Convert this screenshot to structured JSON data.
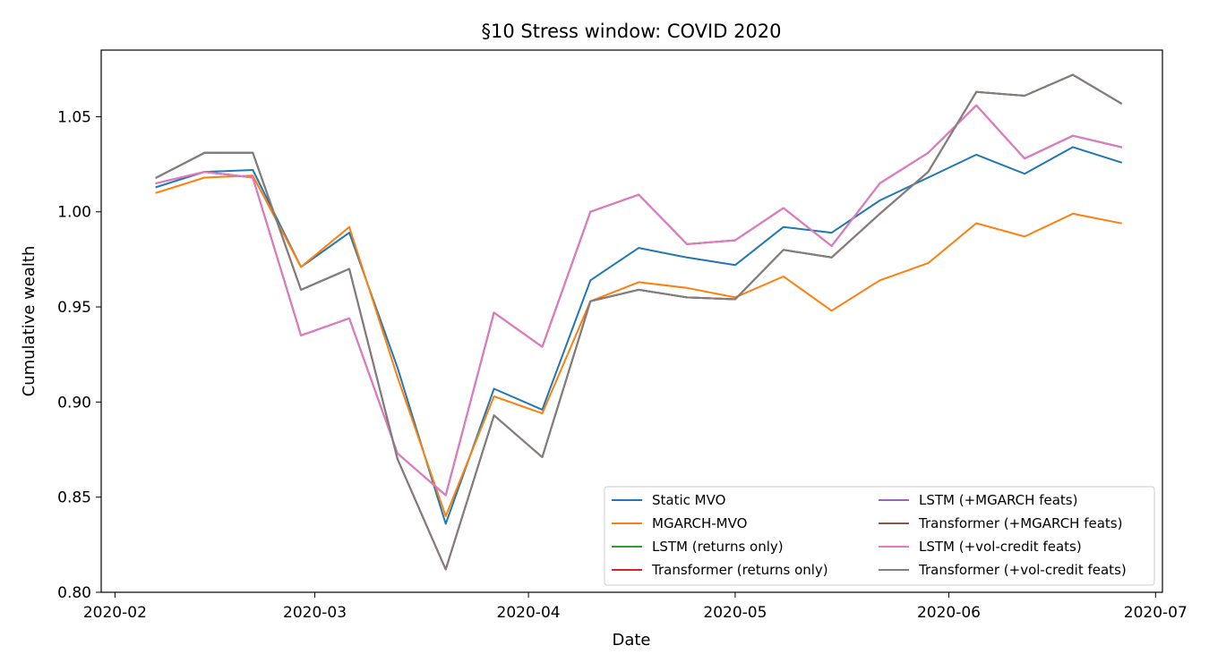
{
  "chart_data": {
    "type": "line",
    "title": "§10 Stress window: COVID 2020",
    "xlabel": "Date",
    "ylabel": "Cumulative wealth",
    "x_axis": "date",
    "xlim": [
      "2020-01-30",
      "2020-07-02"
    ],
    "ylim": [
      0.8,
      1.085
    ],
    "xticks": [
      "2020-02-01",
      "2020-03-01",
      "2020-04-01",
      "2020-05-01",
      "2020-06-01",
      "2020-07-01"
    ],
    "xtick_labels": [
      "2020-02",
      "2020-03",
      "2020-04",
      "2020-05",
      "2020-06",
      "2020-07"
    ],
    "yticks": [
      0.8,
      0.85,
      0.9,
      0.95,
      1.0,
      1.05
    ],
    "ytick_labels": [
      "0.80",
      "0.85",
      "0.90",
      "0.95",
      "1.00",
      "1.05"
    ],
    "grid": false,
    "legend_position": "lower-right",
    "legend_columns": 2,
    "x": [
      "2020-02-07",
      "2020-02-14",
      "2020-02-21",
      "2020-02-28",
      "2020-03-06",
      "2020-03-13",
      "2020-03-20",
      "2020-03-27",
      "2020-04-03",
      "2020-04-10",
      "2020-04-17",
      "2020-04-24",
      "2020-05-01",
      "2020-05-08",
      "2020-05-15",
      "2020-05-22",
      "2020-05-29",
      "2020-06-05",
      "2020-06-12",
      "2020-06-19",
      "2020-06-26"
    ],
    "series": [
      {
        "name": "Static MVO",
        "color": "#1f77b4",
        "values": [
          1.013,
          1.021,
          1.022,
          0.971,
          0.989,
          0.918,
          0.836,
          0.907,
          0.896,
          0.964,
          0.981,
          0.976,
          0.972,
          0.992,
          0.989,
          1.006,
          1.018,
          1.03,
          1.02,
          1.034,
          1.026
        ]
      },
      {
        "name": "MGARCH-MVO",
        "color": "#ff7f0e",
        "values": [
          1.01,
          1.018,
          1.019,
          0.971,
          0.992,
          0.913,
          0.84,
          0.903,
          0.894,
          0.953,
          0.963,
          0.96,
          0.955,
          0.966,
          0.948,
          0.964,
          0.973,
          0.994,
          0.987,
          0.999,
          0.994
        ]
      },
      {
        "name": "LSTM (returns only)",
        "color": "#2ca02c",
        "values": [
          1.015,
          1.021,
          1.018,
          0.935,
          0.944,
          0.873,
          0.851,
          0.947,
          0.929,
          1.0,
          1.009,
          0.983,
          0.985,
          1.002,
          0.982,
          1.015,
          1.031,
          1.056,
          1.028,
          1.04,
          1.034
        ]
      },
      {
        "name": "Transformer (returns only)",
        "color": "#d62728",
        "values": [
          1.018,
          1.031,
          1.031,
          0.959,
          0.97,
          0.87,
          0.812,
          0.893,
          0.871,
          0.953,
          0.959,
          0.955,
          0.954,
          0.98,
          0.976,
          0.999,
          1.021,
          1.063,
          1.061,
          1.072,
          1.057
        ]
      },
      {
        "name": "LSTM (+MGARCH feats)",
        "color": "#9467bd",
        "values": [
          1.015,
          1.021,
          1.018,
          0.935,
          0.944,
          0.873,
          0.851,
          0.947,
          0.929,
          1.0,
          1.009,
          0.983,
          0.985,
          1.002,
          0.982,
          1.015,
          1.031,
          1.056,
          1.028,
          1.04,
          1.034
        ]
      },
      {
        "name": "Transformer (+MGARCH feats)",
        "color": "#8c564b",
        "values": [
          1.018,
          1.031,
          1.031,
          0.959,
          0.97,
          0.87,
          0.812,
          0.893,
          0.871,
          0.953,
          0.959,
          0.955,
          0.954,
          0.98,
          0.976,
          0.999,
          1.021,
          1.063,
          1.061,
          1.072,
          1.057
        ]
      },
      {
        "name": "LSTM (+vol-credit feats)",
        "color": "#e377c2",
        "values": [
          1.015,
          1.021,
          1.018,
          0.935,
          0.944,
          0.873,
          0.851,
          0.947,
          0.929,
          1.0,
          1.009,
          0.983,
          0.985,
          1.002,
          0.982,
          1.015,
          1.031,
          1.056,
          1.028,
          1.04,
          1.034
        ]
      },
      {
        "name": "Transformer (+vol-credit feats)",
        "color": "#7f7f7f",
        "values": [
          1.018,
          1.031,
          1.031,
          0.959,
          0.97,
          0.87,
          0.812,
          0.893,
          0.871,
          0.953,
          0.959,
          0.955,
          0.954,
          0.98,
          0.976,
          0.999,
          1.021,
          1.063,
          1.061,
          1.072,
          1.057
        ]
      }
    ]
  }
}
